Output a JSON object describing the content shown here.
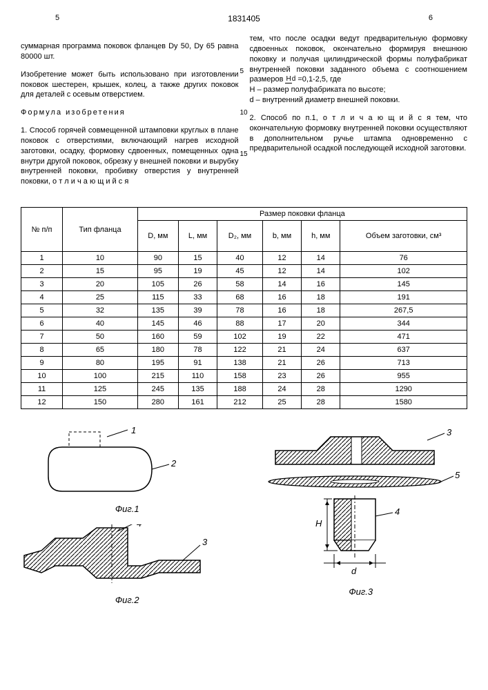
{
  "header": {
    "page_left": "5",
    "doc_num": "1831405",
    "page_right": "6"
  },
  "leftCol": {
    "p1": "суммарная программа поковок фланцев Dy 50, Dy 65 равна 80000 шт.",
    "p2": "Изобретение может быть использовано при изготовлении поковок шестерен, крышек, колец, а также других поковок для деталей с осевым отверстием.",
    "formula_title": "Формула изобретения",
    "p3": "1. Способ горячей совмещенной штамповки круглых в плане поковок с отверстиями, включающий нагрев исходной заготовки, осадку, формовку сдвоенных, помещенных одна внутри другой поковок, обрезку у внешней поковки и вырубку внутренней поковки, пробивку отверстия у внутренней поковки, о т л и ч а ю щ и й с я"
  },
  "rightCol": {
    "p1a": "тем, что после осадки ведут предварительную формовку сдвоенных поковок, окончательно формируя внешнюю поковку и получая цилиндрической формы полуфабрикат внутренней поковки заданного объема с",
    "ratio_label": "соотношением размеров",
    "ratio_num": "H",
    "ratio_den": "d",
    "ratio_val": "=0,1-2,5, где",
    "p2": "H – размер полуфабриката по высоте;",
    "p3": "d – внутренний диаметр внешней поковки.",
    "p4": "2. Способ по п.1, о т л и ч а ю щ и й с я тем, что окончательную формовку внутренней поковки осуществляют в дополнительном ручье штампа одновременно с предварительной осадкой последующей исходной заготовки."
  },
  "lineNums": {
    "n5": "5",
    "n10": "10",
    "n15": "15"
  },
  "table": {
    "h1": "№ п/п",
    "h2": "Тип флан­ца",
    "h3": "Размер поковки фланца",
    "sub": [
      "D, мм",
      "L, мм",
      "D₂, мм",
      "b, мм",
      "h, мм",
      "Объем за­готовки, см³"
    ],
    "rows": [
      [
        "1",
        "10",
        "90",
        "15",
        "40",
        "12",
        "14",
        "76"
      ],
      [
        "2",
        "15",
        "95",
        "19",
        "45",
        "12",
        "14",
        "102"
      ],
      [
        "3",
        "20",
        "105",
        "26",
        "58",
        "14",
        "16",
        "145"
      ],
      [
        "4",
        "25",
        "115",
        "33",
        "68",
        "16",
        "18",
        "191"
      ],
      [
        "5",
        "32",
        "135",
        "39",
        "78",
        "16",
        "18",
        "267,5"
      ],
      [
        "6",
        "40",
        "145",
        "46",
        "88",
        "17",
        "20",
        "344"
      ],
      [
        "7",
        "50",
        "160",
        "59",
        "102",
        "19",
        "22",
        "471"
      ],
      [
        "8",
        "65",
        "180",
        "78",
        "122",
        "21",
        "24",
        "637"
      ],
      [
        "9",
        "80",
        "195",
        "91",
        "138",
        "21",
        "26",
        "713"
      ],
      [
        "10",
        "100",
        "215",
        "110",
        "158",
        "23",
        "26",
        "955"
      ],
      [
        "11",
        "125",
        "245",
        "135",
        "188",
        "24",
        "28",
        "1290"
      ],
      [
        "12",
        "150",
        "280",
        "161",
        "212",
        "25",
        "28",
        "1580"
      ]
    ]
  },
  "figs": {
    "f1": "Фиг.1",
    "f2": "Фиг.2",
    "f3": "Фиг.3",
    "lbl1": "1",
    "lbl2": "2",
    "lbl3": "3",
    "lbl4": "4",
    "lbl5": "5",
    "H": "H",
    "d": "d"
  }
}
